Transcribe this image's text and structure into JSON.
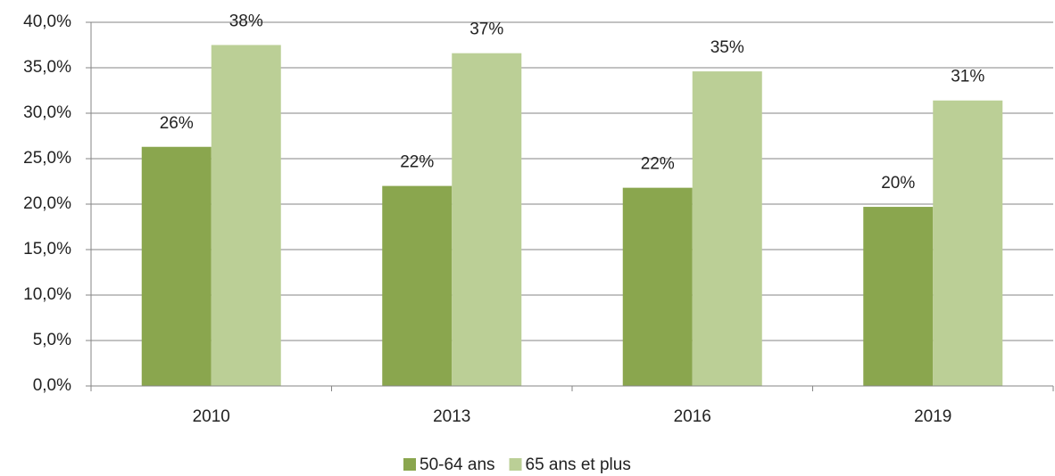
{
  "chart_data": {
    "type": "bar",
    "categories": [
      "2010",
      "2013",
      "2016",
      "2019"
    ],
    "series": [
      {
        "name": "50-64 ans",
        "color": "#8aa64e",
        "values": [
          26.3,
          22.0,
          21.8,
          19.7
        ],
        "value_labels": [
          "26%",
          "22%",
          "22%",
          "20%"
        ]
      },
      {
        "name": "65 ans et plus",
        "color": "#bbcf96",
        "values": [
          37.5,
          36.6,
          34.6,
          31.4
        ],
        "value_labels": [
          "38%",
          "37%",
          "35%",
          "31%"
        ]
      }
    ],
    "ylim": [
      0,
      40
    ],
    "yticks": [
      {
        "value": 0,
        "label": "0,0%"
      },
      {
        "value": 5,
        "label": "5,0%"
      },
      {
        "value": 10,
        "label": "10,0%"
      },
      {
        "value": 15,
        "label": "15,0%"
      },
      {
        "value": 20,
        "label": "20,0%"
      },
      {
        "value": 25,
        "label": "25,0%"
      },
      {
        "value": 30,
        "label": "30,0%"
      },
      {
        "value": 35,
        "label": "35,0%"
      },
      {
        "value": 40,
        "label": "40,0%"
      }
    ],
    "grid": true,
    "legend": "bottom"
  }
}
